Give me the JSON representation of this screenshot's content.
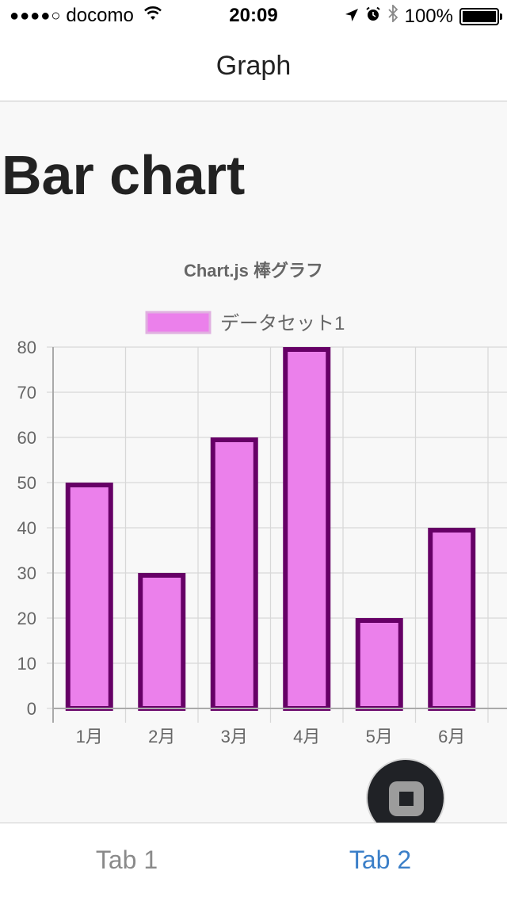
{
  "status_bar": {
    "signal": "●●●●○",
    "carrier": "docomo",
    "time": "20:09",
    "battery": "100%",
    "battery_level": 1.0
  },
  "nav": {
    "title": "Graph"
  },
  "page": {
    "heading": "Bar chart"
  },
  "chart_data": {
    "type": "bar",
    "title": "Chart.js 棒グラフ",
    "categories": [
      "1月",
      "2月",
      "3月",
      "4月",
      "5月",
      "6月"
    ],
    "series": [
      {
        "name": "データセット1",
        "values": [
          50,
          30,
          60,
          80,
          20,
          40
        ]
      }
    ],
    "ylim": [
      0,
      80
    ],
    "yticks": [
      0,
      10,
      20,
      30,
      40,
      50,
      60,
      70,
      80
    ],
    "xlabel": "",
    "ylabel": "",
    "grid": true,
    "legend_position": "top",
    "fill_color": "#eb80eb",
    "border_color": "#660066"
  },
  "tabs": [
    {
      "label": "Tab 1",
      "active": false
    },
    {
      "label": "Tab 2",
      "active": true
    }
  ],
  "colors": {
    "active_tab": "#3b7fc8",
    "inactive_tab": "#8a8a8a"
  }
}
